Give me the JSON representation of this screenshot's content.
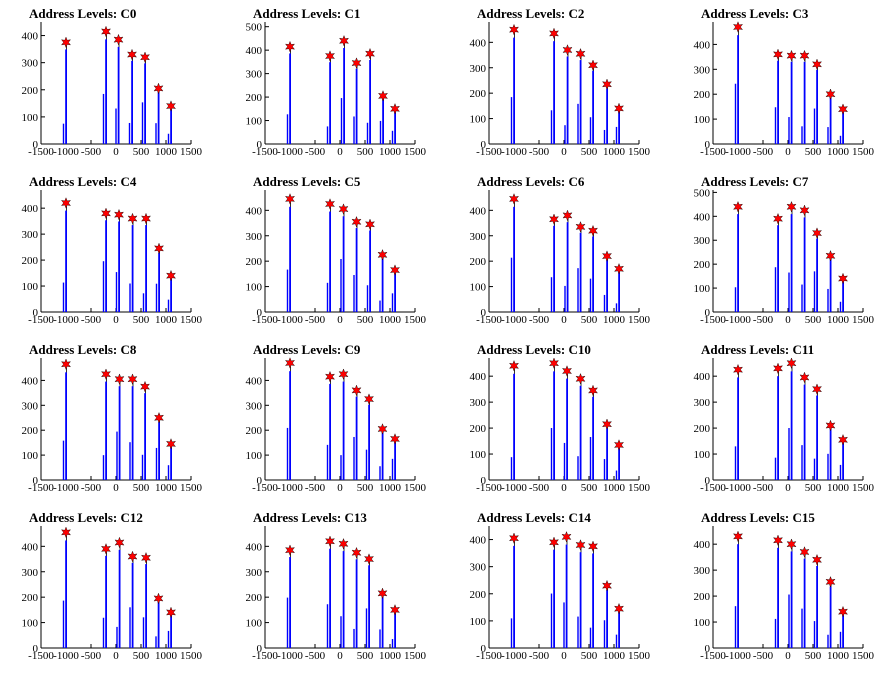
{
  "chart_data": [
    {
      "type": "histogram",
      "title": "Address Levels: C0",
      "xlim": [
        -1500,
        1500
      ],
      "ylim": [
        0,
        450
      ],
      "yticks": [
        0,
        100,
        200,
        300,
        400
      ],
      "xticks": [
        -1500,
        -1000,
        -500,
        0,
        500,
        1000,
        1500
      ],
      "peaks": [
        {
          "x": -1000,
          "y": 375
        },
        {
          "x": -200,
          "y": 415
        },
        {
          "x": 50,
          "y": 385
        },
        {
          "x": 320,
          "y": 330
        },
        {
          "x": 580,
          "y": 320
        },
        {
          "x": 850,
          "y": 205
        },
        {
          "x": 1100,
          "y": 140
        }
      ]
    },
    {
      "type": "histogram",
      "title": "Address Levels: C1",
      "xlim": [
        -1500,
        1500
      ],
      "ylim": [
        0,
        520
      ],
      "yticks": [
        0,
        100,
        200,
        300,
        400,
        500
      ],
      "xticks": [
        -1500,
        -1000,
        -500,
        0,
        500,
        1000,
        1500
      ],
      "peaks": [
        {
          "x": -1000,
          "y": 415
        },
        {
          "x": -200,
          "y": 375
        },
        {
          "x": 80,
          "y": 440
        },
        {
          "x": 330,
          "y": 345
        },
        {
          "x": 600,
          "y": 385
        },
        {
          "x": 860,
          "y": 205
        },
        {
          "x": 1100,
          "y": 150
        }
      ]
    },
    {
      "type": "histogram",
      "title": "Address Levels: C2",
      "xlim": [
        -1500,
        1500
      ],
      "ylim": [
        0,
        480
      ],
      "yticks": [
        0,
        100,
        200,
        300,
        400
      ],
      "xticks": [
        -1500,
        -1000,
        -500,
        0,
        500,
        1000,
        1500
      ],
      "peaks": [
        {
          "x": -1000,
          "y": 450
        },
        {
          "x": -200,
          "y": 435
        },
        {
          "x": 70,
          "y": 370
        },
        {
          "x": 330,
          "y": 355
        },
        {
          "x": 580,
          "y": 310
        },
        {
          "x": 860,
          "y": 235
        },
        {
          "x": 1100,
          "y": 140
        }
      ]
    },
    {
      "type": "histogram",
      "title": "Address Levels: C3",
      "xlim": [
        -1500,
        1500
      ],
      "ylim": [
        0,
        490
      ],
      "yticks": [
        0,
        100,
        200,
        300,
        400
      ],
      "xticks": [
        -1500,
        -1000,
        -500,
        0,
        500,
        1000,
        1500
      ],
      "peaks": [
        {
          "x": -1000,
          "y": 470
        },
        {
          "x": -200,
          "y": 360
        },
        {
          "x": 70,
          "y": 355
        },
        {
          "x": 330,
          "y": 355
        },
        {
          "x": 580,
          "y": 320
        },
        {
          "x": 850,
          "y": 200
        },
        {
          "x": 1100,
          "y": 140
        }
      ]
    },
    {
      "type": "histogram",
      "title": "Address Levels: C4",
      "xlim": [
        -1500,
        1500
      ],
      "ylim": [
        0,
        470
      ],
      "yticks": [
        0,
        100,
        200,
        300,
        400
      ],
      "xticks": [
        -1500,
        -1000,
        -500,
        0,
        500,
        1000,
        1500
      ],
      "peaks": [
        {
          "x": -1000,
          "y": 420
        },
        {
          "x": -200,
          "y": 380
        },
        {
          "x": 60,
          "y": 375
        },
        {
          "x": 330,
          "y": 360
        },
        {
          "x": 600,
          "y": 360
        },
        {
          "x": 860,
          "y": 245
        },
        {
          "x": 1100,
          "y": 140
        }
      ]
    },
    {
      "type": "histogram",
      "title": "Address Levels: C5",
      "xlim": [
        -1500,
        1500
      ],
      "ylim": [
        0,
        480
      ],
      "yticks": [
        0,
        100,
        200,
        300,
        400
      ],
      "xticks": [
        -1500,
        -1000,
        -500,
        0,
        500,
        1000,
        1500
      ],
      "peaks": [
        {
          "x": -1000,
          "y": 445
        },
        {
          "x": -200,
          "y": 425
        },
        {
          "x": 70,
          "y": 405
        },
        {
          "x": 330,
          "y": 355
        },
        {
          "x": 600,
          "y": 345
        },
        {
          "x": 850,
          "y": 225
        },
        {
          "x": 1100,
          "y": 165
        }
      ]
    },
    {
      "type": "histogram",
      "title": "Address Levels: C6",
      "xlim": [
        -1500,
        1500
      ],
      "ylim": [
        0,
        480
      ],
      "yticks": [
        0,
        100,
        200,
        300,
        400
      ],
      "xticks": [
        -1500,
        -1000,
        -500,
        0,
        500,
        1000,
        1500
      ],
      "peaks": [
        {
          "x": -1000,
          "y": 445
        },
        {
          "x": -200,
          "y": 365
        },
        {
          "x": 70,
          "y": 380
        },
        {
          "x": 330,
          "y": 335
        },
        {
          "x": 580,
          "y": 320
        },
        {
          "x": 860,
          "y": 220
        },
        {
          "x": 1100,
          "y": 170
        }
      ]
    },
    {
      "type": "histogram",
      "title": "Address Levels: C7",
      "xlim": [
        -1500,
        1500
      ],
      "ylim": [
        0,
        510
      ],
      "yticks": [
        0,
        100,
        200,
        300,
        400,
        500
      ],
      "xticks": [
        -1500,
        -1000,
        -500,
        0,
        500,
        1000,
        1500
      ],
      "peaks": [
        {
          "x": -1000,
          "y": 440
        },
        {
          "x": -200,
          "y": 390
        },
        {
          "x": 70,
          "y": 440
        },
        {
          "x": 330,
          "y": 425
        },
        {
          "x": 580,
          "y": 330
        },
        {
          "x": 850,
          "y": 235
        },
        {
          "x": 1100,
          "y": 140
        }
      ]
    },
    {
      "type": "histogram",
      "title": "Address Levels: C8",
      "xlim": [
        -1500,
        1500
      ],
      "ylim": [
        0,
        490
      ],
      "yticks": [
        0,
        100,
        200,
        300,
        400
      ],
      "xticks": [
        -1500,
        -1000,
        -500,
        0,
        500,
        1000,
        1500
      ],
      "peaks": [
        {
          "x": -1000,
          "y": 465
        },
        {
          "x": -200,
          "y": 425
        },
        {
          "x": 70,
          "y": 405
        },
        {
          "x": 330,
          "y": 405
        },
        {
          "x": 580,
          "y": 375
        },
        {
          "x": 860,
          "y": 250
        },
        {
          "x": 1100,
          "y": 145
        }
      ]
    },
    {
      "type": "histogram",
      "title": "Address Levels: C9",
      "xlim": [
        -1500,
        1500
      ],
      "ylim": [
        0,
        490
      ],
      "yticks": [
        0,
        100,
        200,
        300,
        400
      ],
      "xticks": [
        -1500,
        -1000,
        -500,
        0,
        500,
        1000,
        1500
      ],
      "peaks": [
        {
          "x": -1000,
          "y": 470
        },
        {
          "x": -200,
          "y": 415
        },
        {
          "x": 70,
          "y": 425
        },
        {
          "x": 330,
          "y": 360
        },
        {
          "x": 580,
          "y": 325
        },
        {
          "x": 850,
          "y": 205
        },
        {
          "x": 1100,
          "y": 165
        }
      ]
    },
    {
      "type": "histogram",
      "title": "Address Levels: C10",
      "xlim": [
        -1500,
        1500
      ],
      "ylim": [
        0,
        470
      ],
      "yticks": [
        0,
        100,
        200,
        300,
        400
      ],
      "xticks": [
        -1500,
        -1000,
        -500,
        0,
        500,
        1000,
        1500
      ],
      "peaks": [
        {
          "x": -1000,
          "y": 440
        },
        {
          "x": -200,
          "y": 450
        },
        {
          "x": 60,
          "y": 420
        },
        {
          "x": 330,
          "y": 390
        },
        {
          "x": 580,
          "y": 345
        },
        {
          "x": 860,
          "y": 215
        },
        {
          "x": 1100,
          "y": 135
        }
      ]
    },
    {
      "type": "histogram",
      "title": "Address Levels: C11",
      "xlim": [
        -1500,
        1500
      ],
      "ylim": [
        0,
        470
      ],
      "yticks": [
        0,
        100,
        200,
        300,
        400
      ],
      "xticks": [
        -1500,
        -1000,
        -500,
        0,
        500,
        1000,
        1500
      ],
      "peaks": [
        {
          "x": -1000,
          "y": 425
        },
        {
          "x": -200,
          "y": 430
        },
        {
          "x": 70,
          "y": 450
        },
        {
          "x": 330,
          "y": 395
        },
        {
          "x": 580,
          "y": 350
        },
        {
          "x": 850,
          "y": 210
        },
        {
          "x": 1100,
          "y": 155
        }
      ]
    },
    {
      "type": "histogram",
      "title": "Address Levels: C12",
      "xlim": [
        -1500,
        1500
      ],
      "ylim": [
        0,
        480
      ],
      "yticks": [
        0,
        100,
        200,
        300,
        400
      ],
      "xticks": [
        -1500,
        -1000,
        -500,
        0,
        500,
        1000,
        1500
      ],
      "peaks": [
        {
          "x": -1000,
          "y": 455
        },
        {
          "x": -200,
          "y": 390
        },
        {
          "x": 70,
          "y": 415
        },
        {
          "x": 330,
          "y": 360
        },
        {
          "x": 600,
          "y": 355
        },
        {
          "x": 850,
          "y": 195
        },
        {
          "x": 1100,
          "y": 140
        }
      ]
    },
    {
      "type": "histogram",
      "title": "Address Levels: C13",
      "xlim": [
        -1500,
        1500
      ],
      "ylim": [
        0,
        480
      ],
      "yticks": [
        0,
        100,
        200,
        300,
        400
      ],
      "xticks": [
        -1500,
        -1000,
        -500,
        0,
        500,
        1000,
        1500
      ],
      "peaks": [
        {
          "x": -1000,
          "y": 385
        },
        {
          "x": -200,
          "y": 420
        },
        {
          "x": 70,
          "y": 410
        },
        {
          "x": 330,
          "y": 375
        },
        {
          "x": 580,
          "y": 350
        },
        {
          "x": 850,
          "y": 215
        },
        {
          "x": 1100,
          "y": 150
        }
      ]
    },
    {
      "type": "histogram",
      "title": "Address Levels: C14",
      "xlim": [
        -1500,
        1500
      ],
      "ylim": [
        0,
        450
      ],
      "yticks": [
        0,
        100,
        200,
        300,
        400
      ],
      "xticks": [
        -1500,
        -1000,
        -500,
        0,
        500,
        1000,
        1500
      ],
      "peaks": [
        {
          "x": -1000,
          "y": 405
        },
        {
          "x": -200,
          "y": 390
        },
        {
          "x": 50,
          "y": 410
        },
        {
          "x": 330,
          "y": 380
        },
        {
          "x": 580,
          "y": 375
        },
        {
          "x": 860,
          "y": 230
        },
        {
          "x": 1100,
          "y": 145
        }
      ]
    },
    {
      "type": "histogram",
      "title": "Address Levels: C15",
      "xlim": [
        -1500,
        1500
      ],
      "ylim": [
        0,
        470
      ],
      "yticks": [
        0,
        100,
        200,
        300,
        400
      ],
      "xticks": [
        -1500,
        -1000,
        -500,
        0,
        500,
        1000,
        1500
      ],
      "peaks": [
        {
          "x": -1000,
          "y": 430
        },
        {
          "x": -200,
          "y": 415
        },
        {
          "x": 70,
          "y": 400
        },
        {
          "x": 330,
          "y": 370
        },
        {
          "x": 580,
          "y": 340
        },
        {
          "x": 850,
          "y": 255
        },
        {
          "x": 1100,
          "y": 140
        }
      ]
    }
  ],
  "style": {
    "bar_color": "#0000ff",
    "marker_color": "#ff0000",
    "axis_color": "#000000"
  }
}
